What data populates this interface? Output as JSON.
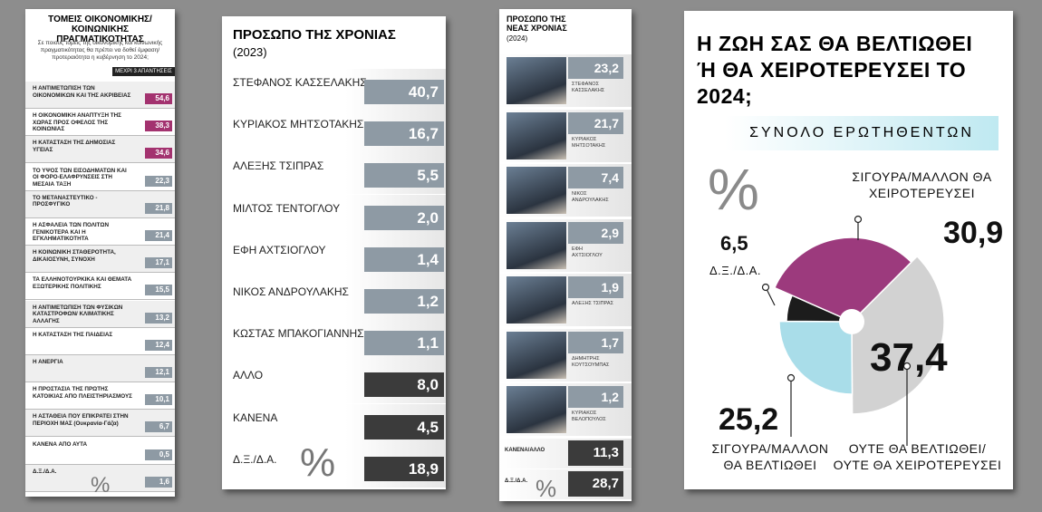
{
  "chart_data": [
    {
      "type": "bar",
      "title": "ΤΟΜΕΙΣ ΟΙΚΟΝΟΜΙΚΗΣ/ ΚΟΙΝΩΝΙΚΗΣ ΠΡΑΓΜΑΤΙΚΟΤΗΤΑΣ",
      "subtitle": "Σε ποιους τομείς της οικονομικής και κοινωνικής πραγματικότητας θα πρέπει να δοθεί έμφαση/ προτεραιότητα η κυβέρνηση το 2024;",
      "note": "ΜΕΧΡΙ 3 ΑΠΑΝΤΗΣΕΙΣ",
      "unit_symbol": "%",
      "categories": [
        "Η ΑΝΤΙΜΕΤΩΠΙΣΗ ΤΩΝ ΟΙΚΟΝΟΜΙΚΩΝ ΚΑΙ ΤΗΣ ΑΚΡΙΒΕΙΑΣ",
        "Η ΟΙΚΟΝΟΜΙΚΗ ΑΝΑΠΤΥΞΗ ΤΗΣ ΧΩΡΑΣ ΠΡΟΣ ΟΦΕΛΟΣ ΤΗΣ ΚΟΙΝΩΝΙΑΣ",
        "Η ΚΑΤΑΣΤΑΣΗ ΤΗΣ ΔΗΜΟΣΙΑΣ ΥΓΕΙΑΣ",
        "ΤΟ ΥΨΟΣ ΤΩΝ ΕΙΣΟΔΗΜΑΤΩΝ ΚΑΙ ΟΙ ΦΟΡΟ-ΕΛΑΦΡΥΝΣΕΙΣ ΣΤΗ ΜΕΣΑΙΑ ΤΑΞΗ",
        "ΤΟ ΜΕΤΑΝΑΣΤΕΥΤΙΚΟ - ΠΡΟΣΦΥΓΙΚΟ",
        "Η ΑΣΦΑΛΕΙΑ ΤΩΝ ΠΟΛΙΤΩΝ ΓΕΝΙΚΟΤΕΡΑ ΚΑΙ Η ΕΓΚΛΗΜΑΤΙΚΟΤΗΤΑ",
        "Η ΚΟΙΝΩΝΙΚΗ ΣΤΑΘΕΡΟΤΗΤΑ, ΔΙΚΑΙΟΣΥΝΗ, ΣΥΝΟΧΗ",
        "ΤΑ ΕΛΛΗΝΟΤΟΥΡΚΙΚΑ ΚΑΙ ΘΕΜΑΤΑ ΕΞΩΤΕΡΙΚΗΣ ΠΟΛΙΤΙΚΗΣ",
        "Η ΑΝΤΙΜΕΤΩΠΙΣΗ ΤΩΝ ΦΥΣΙΚΩΝ ΚΑΤΑΣΤΡΟΦΩΝ/ ΚΛΙΜΑΤΙΚΗΣ ΑΛΛΑΓΗΣ",
        "Η ΚΑΤΑΣΤΑΣΗ ΤΗΣ ΠΑΙΔΕΙΑΣ",
        "Η ΑΝΕΡΓΙΑ",
        "Η ΠΡΟΣΤΑΣΙΑ ΤΗΣ ΠΡΩΤΗΣ ΚΑΤΟΙΚΙΑΣ ΑΠΟ ΠΛΕΙΣΤΗΡΙΑΣΜΟΥΣ",
        "Η ΑΣΤΑΘΕΙΑ ΠΟΥ ΕΠΙΚΡΑΤΕΙ ΣΤΗΝ ΠΕΡΙΟΧΗ ΜΑΣ (Ουκρανία-Γάζα)",
        "ΚΑΝΕΝΑ ΑΠΟ ΑΥΤΑ",
        "Δ.Ξ./Δ.Α."
      ],
      "values": [
        54.6,
        38.3,
        34.6,
        22.3,
        21.8,
        21.4,
        17.1,
        15.5,
        13.2,
        12.4,
        12.1,
        10.1,
        6.7,
        0.5,
        1.6
      ],
      "value_labels": [
        "54,6",
        "38,3",
        "34,6",
        "22,3",
        "21,8",
        "21,4",
        "17,1",
        "15,5",
        "13,2",
        "12,4",
        "12,1",
        "10,1",
        "6,7",
        "0,5",
        "1,6"
      ],
      "colors": [
        "#a3326f",
        "#a3326f",
        "#a3326f",
        "#8e9aa4",
        "#8e9aa4",
        "#8e9aa4",
        "#8e9aa4",
        "#8e9aa4",
        "#8e9aa4",
        "#8e9aa4",
        "#8e9aa4",
        "#8e9aa4",
        "#8e9aa4",
        "#8e9aa4",
        "#8e9aa4"
      ]
    },
    {
      "type": "bar",
      "title": "ΠΡΟΣΩΠΟ ΤΗΣ ΧΡΟΝΙΑΣ",
      "subtitle": "(2023)",
      "unit_symbol": "%",
      "categories": [
        "ΣΤΕΦΑΝΟΣ ΚΑΣΣΕΛΑΚΗΣ",
        "ΚΥΡΙΑΚΟΣ ΜΗΤΣΟΤΑΚΗΣ",
        "ΑΛΕΞΗΣ ΤΣΙΠΡΑΣ",
        "ΜΙΛΤΟΣ ΤΕΝΤΟΓΛΟΥ",
        "ΕΦΗ ΑΧΤΣΙΟΓΛΟΥ",
        "ΝΙΚΟΣ ΑΝΔΡΟΥΛΑΚΗΣ",
        "ΚΩΣΤΑΣ ΜΠΑΚΟΓΙΑΝΝΗΣ",
        "ΑΛΛΟ",
        "ΚΑΝΕΝΑ",
        "Δ.Ξ./Δ.Α."
      ],
      "values": [
        40.7,
        16.7,
        5.5,
        2.0,
        1.4,
        1.2,
        1.1,
        8.0,
        4.5,
        18.9
      ],
      "value_labels": [
        "40,7",
        "16,7",
        "5,5",
        "2,0",
        "1,4",
        "1,2",
        "1,1",
        "8,0",
        "4,5",
        "18,9"
      ],
      "colors": [
        "#8e9aa4",
        "#8e9aa4",
        "#8e9aa4",
        "#8e9aa4",
        "#8e9aa4",
        "#8e9aa4",
        "#8e9aa4",
        "#3b3b3b",
        "#3b3b3b",
        "#3b3b3b"
      ]
    },
    {
      "type": "bar",
      "title": "ΠΡΟΣΩΠΟ ΤΗΣ ΝΕΑΣ ΧΡΟΝΙΑΣ",
      "subtitle": "(2024)",
      "unit_symbol": "%",
      "categories": [
        "ΣΤΕΦΑΝΟΣ ΚΑΣΣΕΛΑΚΗΣ",
        "ΚΥΡΙΑΚΟΣ ΜΗΤΣΟΤΑΚΗΣ",
        "ΝΙΚΟΣ ΑΝΔΡΟΥΛΑΚΗΣ",
        "ΕΦΗ ΑΧΤΣΙΟΓΛΟΥ",
        "ΑΛΕΞΗΣ ΤΣΙΠΡΑΣ",
        "ΔΗΜΗΤΡΗΣ ΚΟΥΤΣΟΥΜΠΑΣ",
        "ΚΥΡΙΑΚΟΣ ΒΕΛΟΠΟΥΛΟΣ",
        "ΚΑΝΕΝΑ/ΑΛΛΟ",
        "Δ.Ξ./Δ.Α."
      ],
      "values": [
        23.2,
        21.7,
        7.4,
        2.9,
        1.9,
        1.7,
        1.2,
        11.3,
        28.7
      ],
      "value_labels": [
        "23,2",
        "21,7",
        "7,4",
        "2,9",
        "1,9",
        "1,7",
        "1,2",
        "11,3",
        "28,7"
      ],
      "colors": [
        "#8e9aa4",
        "#8e9aa4",
        "#8e9aa4",
        "#8e9aa4",
        "#8e9aa4",
        "#8e9aa4",
        "#8e9aa4",
        "#3b3b3b",
        "#3b3b3b"
      ]
    },
    {
      "type": "pie",
      "title": "Η ΖΩΗ ΣΑΣ ΘΑ ΒΕΛΤΙΩΘΕΙ Ή ΘΑ ΧΕΙΡΟΤΕΡΕΥΣΕΙ ΤΟ 2024;",
      "subtitle": "ΣΥΝΟΛΟ ΕΡΩΤΗΘΕΝΤΩΝ",
      "unit_symbol": "%",
      "categories": [
        "ΟΥΤΕ ΘΑ ΒΕΛΤΙΩΘΕΙ/ ΟΥΤΕ ΘΑ ΧΕΙΡΟΤΕΡΕΥΣΕΙ",
        "ΣΙΓΟΥΡΑ/ΜΑΛΛΟΝ ΘΑ ΒΕΛΤΙΩΘΕΙ",
        "Δ.Ξ./Δ.Α.",
        "ΣΙΓΟΥΡΑ/ΜΑΛΛΟΝ ΘΑ ΧΕΙΡΟΤΕΡΕΥΣΕΙ"
      ],
      "values": [
        37.4,
        25.2,
        6.5,
        30.9
      ],
      "value_labels": [
        "37,4",
        "25,2",
        "6,5",
        "30,9"
      ],
      "colors": [
        "#d2d2d2",
        "#a9dde9",
        "#1c1c1c",
        "#9c3a7d"
      ]
    }
  ]
}
